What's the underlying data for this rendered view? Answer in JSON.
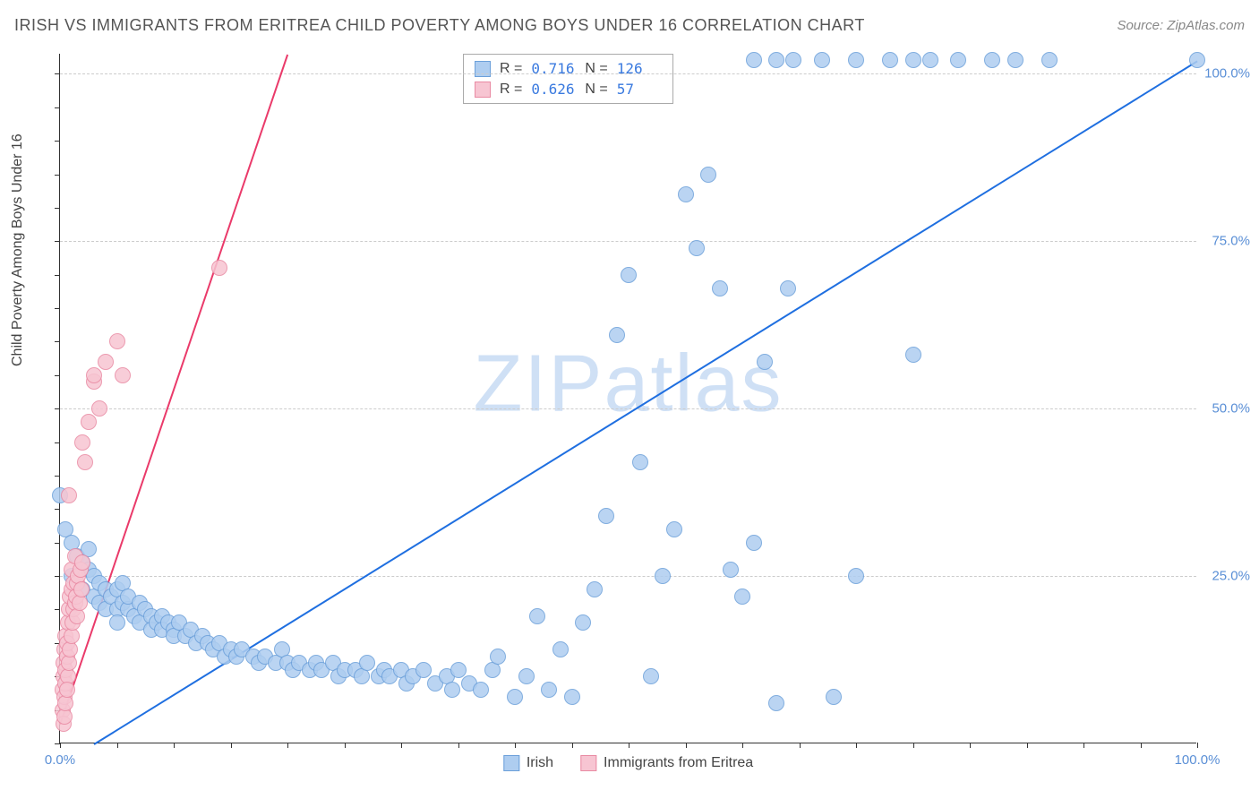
{
  "header": {
    "title": "IRISH VS IMMIGRANTS FROM ERITREA CHILD POVERTY AMONG BOYS UNDER 16 CORRELATION CHART",
    "source": "Source: ZipAtlas.com"
  },
  "chart": {
    "type": "scatter",
    "ylabel": "Child Poverty Among Boys Under 16",
    "watermark": "ZIPatlas",
    "xlim": [
      0,
      100
    ],
    "ylim": [
      0,
      103
    ],
    "xtick_minor_step": 5,
    "ytick_minor_step": 5,
    "xtick_labels": [
      {
        "pos": 0,
        "label": "0.0%"
      },
      {
        "pos": 100,
        "label": "100.0%"
      }
    ],
    "ytick_labels": [
      {
        "pos": 25,
        "label": "25.0%"
      },
      {
        "pos": 50,
        "label": "50.0%"
      },
      {
        "pos": 75,
        "label": "75.0%"
      },
      {
        "pos": 100,
        "label": "100.0%"
      }
    ],
    "grid_color": "#cccccc",
    "background_color": "#ffffff",
    "series": [
      {
        "name": "Irish",
        "color_fill": "#aecdf0",
        "color_stroke": "#6ca0da",
        "marker_radius": 9,
        "stats": {
          "R": "0.716",
          "N": "126"
        },
        "regression": {
          "x1": 3,
          "y1": 0,
          "x2": 100,
          "y2": 102,
          "color": "#1f6fe0",
          "width": 2
        },
        "points": [
          [
            0,
            37
          ],
          [
            0.5,
            32
          ],
          [
            1,
            30
          ],
          [
            1,
            25
          ],
          [
            1.5,
            28
          ],
          [
            2,
            27
          ],
          [
            2,
            23
          ],
          [
            2.5,
            26
          ],
          [
            2.5,
            29
          ],
          [
            3,
            25
          ],
          [
            3,
            22
          ],
          [
            3.5,
            24
          ],
          [
            3.5,
            21
          ],
          [
            4,
            23
          ],
          [
            4,
            20
          ],
          [
            4.5,
            22
          ],
          [
            5,
            23
          ],
          [
            5,
            20
          ],
          [
            5,
            18
          ],
          [
            5.5,
            21
          ],
          [
            5.5,
            24
          ],
          [
            6,
            20
          ],
          [
            6,
            22
          ],
          [
            6.5,
            19
          ],
          [
            7,
            21
          ],
          [
            7,
            18
          ],
          [
            7.5,
            20
          ],
          [
            8,
            19
          ],
          [
            8,
            17
          ],
          [
            8.5,
            18
          ],
          [
            9,
            19
          ],
          [
            9,
            17
          ],
          [
            9.5,
            18
          ],
          [
            10,
            17
          ],
          [
            10,
            16
          ],
          [
            10.5,
            18
          ],
          [
            11,
            16
          ],
          [
            11.5,
            17
          ],
          [
            12,
            15
          ],
          [
            12.5,
            16
          ],
          [
            13,
            15
          ],
          [
            13.5,
            14
          ],
          [
            14,
            15
          ],
          [
            14.5,
            13
          ],
          [
            15,
            14
          ],
          [
            15.5,
            13
          ],
          [
            16,
            14
          ],
          [
            17,
            13
          ],
          [
            17.5,
            12
          ],
          [
            18,
            13
          ],
          [
            19,
            12
          ],
          [
            19.5,
            14
          ],
          [
            20,
            12
          ],
          [
            20.5,
            11
          ],
          [
            21,
            12
          ],
          [
            22,
            11
          ],
          [
            22.5,
            12
          ],
          [
            23,
            11
          ],
          [
            24,
            12
          ],
          [
            24.5,
            10
          ],
          [
            25,
            11
          ],
          [
            26,
            11
          ],
          [
            26.5,
            10
          ],
          [
            27,
            12
          ],
          [
            28,
            10
          ],
          [
            28.5,
            11
          ],
          [
            29,
            10
          ],
          [
            30,
            11
          ],
          [
            30.5,
            9
          ],
          [
            31,
            10
          ],
          [
            32,
            11
          ],
          [
            33,
            9
          ],
          [
            34,
            10
          ],
          [
            34.5,
            8
          ],
          [
            35,
            11
          ],
          [
            36,
            9
          ],
          [
            37,
            8
          ],
          [
            38,
            11
          ],
          [
            38.5,
            13
          ],
          [
            40,
            7
          ],
          [
            41,
            10
          ],
          [
            42,
            19
          ],
          [
            43,
            8
          ],
          [
            44,
            14
          ],
          [
            45,
            7
          ],
          [
            46,
            18
          ],
          [
            47,
            23
          ],
          [
            48,
            34
          ],
          [
            49,
            61
          ],
          [
            50,
            70
          ],
          [
            51,
            42
          ],
          [
            52,
            10
          ],
          [
            53,
            25
          ],
          [
            54,
            32
          ],
          [
            55,
            82
          ],
          [
            56,
            74
          ],
          [
            57,
            85
          ],
          [
            58,
            68
          ],
          [
            59,
            26
          ],
          [
            60,
            22
          ],
          [
            61,
            30
          ],
          [
            62,
            57
          ],
          [
            63,
            6
          ],
          [
            64,
            68
          ],
          [
            68,
            7
          ],
          [
            70,
            25
          ],
          [
            75,
            58
          ],
          [
            61,
            102
          ],
          [
            63,
            102
          ],
          [
            64.5,
            102
          ],
          [
            67,
            102
          ],
          [
            70,
            102
          ],
          [
            73,
            102
          ],
          [
            75,
            102
          ],
          [
            76.5,
            102
          ],
          [
            79,
            102
          ],
          [
            82,
            102
          ],
          [
            84,
            102
          ],
          [
            87,
            102
          ],
          [
            100,
            102
          ]
        ]
      },
      {
        "name": "Immigrants from Eritrea",
        "color_fill": "#f7c5d2",
        "color_stroke": "#e98aa3",
        "marker_radius": 9,
        "stats": {
          "R": "0.626",
          "N": "57"
        },
        "regression": {
          "x1": 0,
          "y1": 3,
          "x2": 20,
          "y2": 103,
          "color": "#ea3a6a",
          "width": 2
        },
        "points": [
          [
            0.2,
            5
          ],
          [
            0.2,
            8
          ],
          [
            0.3,
            10
          ],
          [
            0.3,
            12
          ],
          [
            0.4,
            7
          ],
          [
            0.4,
            14
          ],
          [
            0.5,
            16
          ],
          [
            0.5,
            9
          ],
          [
            0.5,
            11
          ],
          [
            0.6,
            13
          ],
          [
            0.6,
            15
          ],
          [
            0.7,
            18
          ],
          [
            0.7,
            10
          ],
          [
            0.8,
            20
          ],
          [
            0.8,
            12
          ],
          [
            0.9,
            22
          ],
          [
            0.9,
            14
          ],
          [
            1,
            23
          ],
          [
            1,
            16
          ],
          [
            1,
            26
          ],
          [
            1.1,
            18
          ],
          [
            1.2,
            24
          ],
          [
            1.2,
            20
          ],
          [
            1.3,
            21
          ],
          [
            1.3,
            28
          ],
          [
            1.4,
            22
          ],
          [
            1.5,
            24
          ],
          [
            1.5,
            19
          ],
          [
            1.6,
            25
          ],
          [
            1.7,
            21
          ],
          [
            1.8,
            26
          ],
          [
            1.9,
            23
          ],
          [
            2,
            27
          ],
          [
            2,
            45
          ],
          [
            2.2,
            42
          ],
          [
            2.5,
            48
          ],
          [
            3,
            54
          ],
          [
            3,
            55
          ],
          [
            3.5,
            50
          ],
          [
            4,
            57
          ],
          [
            5,
            60
          ],
          [
            5.5,
            55
          ],
          [
            0.3,
            3
          ],
          [
            0.4,
            4
          ],
          [
            0.5,
            6
          ],
          [
            0.6,
            8
          ],
          [
            0.8,
            37
          ],
          [
            14,
            71
          ]
        ]
      }
    ],
    "legend": [
      {
        "label": "Irish",
        "fill": "#aecdf0",
        "stroke": "#6ca0da"
      },
      {
        "label": "Immigrants from Eritrea",
        "fill": "#f7c5d2",
        "stroke": "#e98aa3"
      }
    ]
  }
}
